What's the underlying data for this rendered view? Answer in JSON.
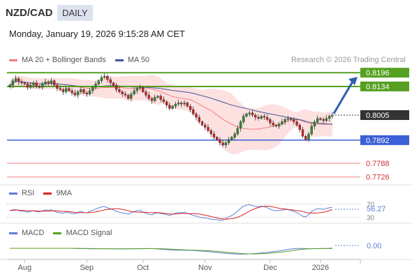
{
  "header": {
    "symbol": "NZD/CAD",
    "period": "DAILY",
    "datetime": "Monday, January 19, 2026 9:15:28 AM CET",
    "attribution": "Research © 2026 Trading Central"
  },
  "legends": {
    "price": [
      {
        "name": "MA 20 + Bollinger Bands",
        "color": "#f08080"
      },
      {
        "name": "MA 50",
        "color": "#3b5998"
      }
    ],
    "rsi": [
      {
        "name": "RSI",
        "color": "#5b7fd6"
      },
      {
        "name": "9MA",
        "color": "#e02020"
      }
    ],
    "macd": [
      {
        "name": "MACD",
        "color": "#5b7fd6"
      },
      {
        "name": "MACD Signal",
        "color": "#55a020"
      }
    ]
  },
  "chart_data": {
    "type": "candlestick",
    "y_range": [
      0.77,
      0.8225
    ],
    "x_labels": [
      "Aug",
      "Sep",
      "Oct",
      "Nov",
      "Dec",
      "2026"
    ],
    "closes": [
      0.814,
      0.816,
      0.817,
      0.8155,
      0.815,
      0.8145,
      0.813,
      0.814,
      0.815,
      0.8135,
      0.813,
      0.8145,
      0.8155,
      0.815,
      0.816,
      0.814,
      0.8125,
      0.812,
      0.811,
      0.8125,
      0.8115,
      0.8105,
      0.8095,
      0.811,
      0.812,
      0.8105,
      0.81,
      0.8115,
      0.813,
      0.8145,
      0.816,
      0.8175,
      0.818,
      0.8165,
      0.815,
      0.814,
      0.812,
      0.811,
      0.81,
      0.8095,
      0.808,
      0.81,
      0.8115,
      0.8125,
      0.813,
      0.811,
      0.8095,
      0.808,
      0.807,
      0.8085,
      0.809,
      0.8075,
      0.8065,
      0.805,
      0.8035,
      0.8045,
      0.8055,
      0.806,
      0.8055,
      0.806,
      0.8045,
      0.803,
      0.801,
      0.7995,
      0.7975,
      0.796,
      0.795,
      0.7935,
      0.792,
      0.7905,
      0.7895,
      0.788,
      0.787,
      0.788,
      0.7895,
      0.7905,
      0.792,
      0.7945,
      0.7975,
      0.8,
      0.801,
      0.8015,
      0.8005,
      0.7995,
      0.799,
      0.8,
      0.7995,
      0.7985,
      0.797,
      0.796,
      0.7955,
      0.7965,
      0.7975,
      0.7985,
      0.799,
      0.7985,
      0.7975,
      0.796,
      0.794,
      0.791,
      0.7895,
      0.792,
      0.7955,
      0.7975,
      0.799,
      0.7985,
      0.798,
      0.799,
      0.8,
      0.8005
    ],
    "levels": [
      {
        "value": 0.8196,
        "label": "0.8196",
        "kind": "resistance"
      },
      {
        "value": 0.8134,
        "label": "0.8134",
        "kind": "resistance"
      },
      {
        "value": 0.8005,
        "label": "0.8005",
        "kind": "last"
      },
      {
        "value": 0.7892,
        "label": "0.7892",
        "kind": "pivot"
      },
      {
        "value": 0.7788,
        "label": "0.7788",
        "kind": "support"
      },
      {
        "value": 0.7726,
        "label": "0.7726",
        "kind": "support"
      }
    ],
    "arrow_target": 0.8196,
    "rsi": {
      "value_label": "56.27",
      "range": [
        20,
        80
      ],
      "guides": [
        {
          "value": 70,
          "label": "70"
        },
        {
          "value": 30,
          "label": "30"
        }
      ]
    },
    "macd": {
      "value_label": "0.00"
    }
  }
}
